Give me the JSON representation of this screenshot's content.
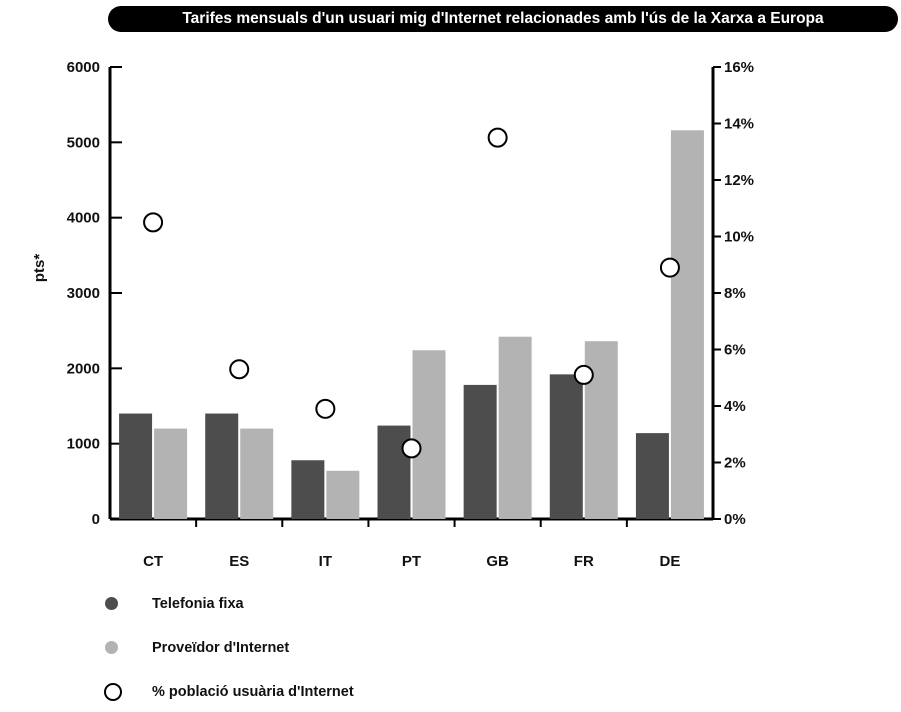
{
  "chart_data": {
    "type": "bar",
    "title": "Tarifes mensuals d'un usuari mig d'Internet relacionades amb l'ús de la Xarxa a Europa",
    "ylabel": "pts*",
    "categories": [
      "CT",
      "ES",
      "IT",
      "PT",
      "GB",
      "FR",
      "DE"
    ],
    "ylim": [
      0,
      6000
    ],
    "y_ticks": [
      "0",
      "1000",
      "2000",
      "3000",
      "4000",
      "5000",
      "6000"
    ],
    "y2lim": [
      0,
      16
    ],
    "y2_ticks": [
      "0%",
      "2%",
      "4%",
      "6%",
      "8%",
      "10%",
      "12%",
      "14%",
      "16%"
    ],
    "grid": false,
    "legend_position": "bottom-left",
    "series": [
      {
        "name": "Telefonia fixa",
        "kind": "bar",
        "axis": "left",
        "color": "#4d4d4d",
        "values": [
          1400,
          1400,
          780,
          1240,
          1780,
          1920,
          1140
        ]
      },
      {
        "name": "Proveïdor d'Internet",
        "kind": "bar",
        "axis": "left",
        "color": "#b3b3b3",
        "values": [
          1200,
          1200,
          640,
          2240,
          2420,
          2360,
          5160
        ]
      },
      {
        "name": "% població usuària d'Internet",
        "kind": "marker",
        "axis": "right",
        "color": "#ffffff",
        "values": [
          10.5,
          5.3,
          3.9,
          2.5,
          13.5,
          5.1,
          8.9
        ]
      }
    ]
  }
}
